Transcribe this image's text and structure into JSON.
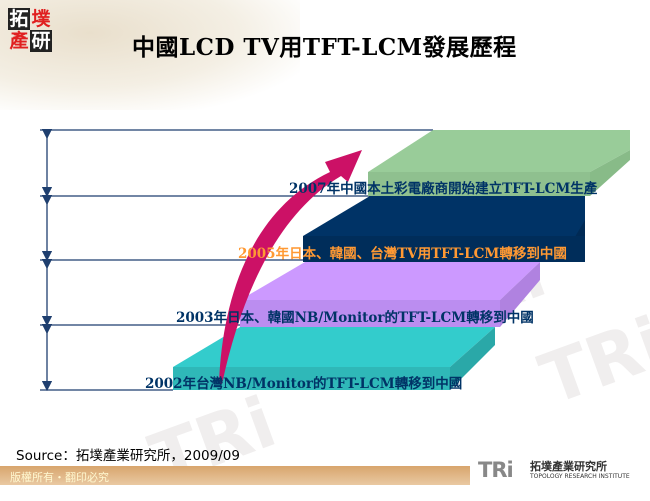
{
  "logo": {
    "chars": [
      "拓",
      "墣",
      "產",
      "研"
    ]
  },
  "title": "中國LCD TV用TFT-LCM發展歷程",
  "steps": [
    {
      "year_label": "2002年台灣NB/Monitor的TFT-LCM轉移到中國",
      "color": "#33cccc",
      "text_color": "#003366"
    },
    {
      "year_label": "2003年日本、韓國NB/Monitor的TFT-LCM轉移到中國",
      "color": "#cc99ff",
      "text_color": "#003366"
    },
    {
      "year_label": "2005年日本、韓國、台灣TV用TFT-LCM轉移到中國",
      "color": "#003366",
      "text_color": "#ff9933"
    },
    {
      "year_label": "2007年中國本土彩電廠商開始建立TFT-LCM生產",
      "color": "#99cc99",
      "text_color": "#003366"
    }
  ],
  "arrow_color": "#cc1166",
  "source": "Source：拓墣產業研究所，2009/09",
  "footer": {
    "copyright": "版權所有・翻印必究",
    "brand_mark": "TRi",
    "brand_cn": "拓墣產業研究所",
    "brand_en": "TOPOLOGY RESEARCH INSTITUTE"
  }
}
